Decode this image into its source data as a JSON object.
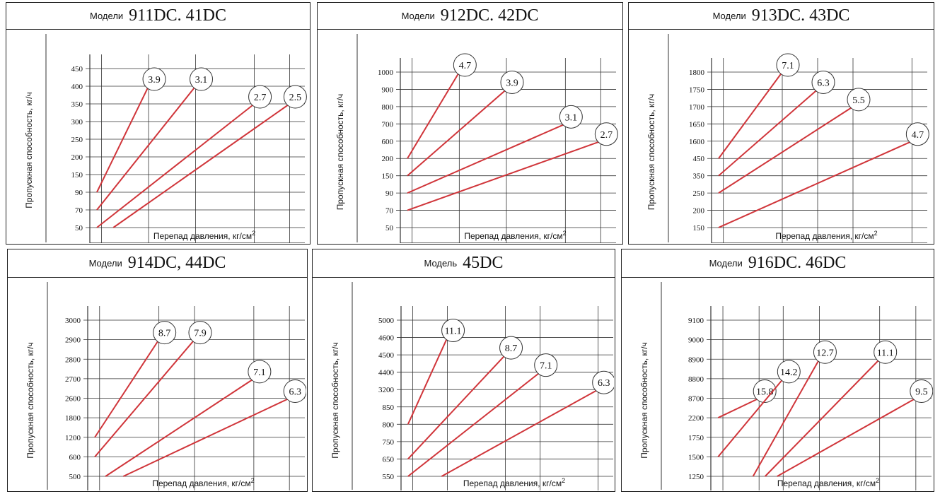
{
  "colors": {
    "line": "#d0353a",
    "grid": "#333333",
    "frame": "#222222"
  },
  "chart_data": [
    {
      "type": "line",
      "title_prefix": "Модели",
      "title_models": "911DC.  41DC",
      "xlabel": "Перепад давления, кг/см",
      "xlabel_sup": "2",
      "ylabel": "Пропускная способность, кг/ч",
      "x_ticks": [
        "1",
        "5",
        "9",
        "14",
        "17"
      ],
      "y_ticks": [
        "450",
        "400",
        "350",
        "300",
        "250",
        "200",
        "150",
        "90",
        "70",
        "50"
      ],
      "series": [
        {
          "label": "3.9",
          "x": [
            0.6,
            5
          ],
          "y": [
            "90",
            "400"
          ]
        },
        {
          "label": "3.1",
          "x": [
            0.6,
            9
          ],
          "y": [
            "70",
            "400"
          ]
        },
        {
          "label": "2.7",
          "x": [
            0.6,
            14
          ],
          "y": [
            "50",
            "350"
          ]
        },
        {
          "label": "2.5",
          "x": [
            2,
            17
          ],
          "y": [
            "50",
            "350"
          ]
        }
      ]
    },
    {
      "type": "line",
      "title_prefix": "Модели",
      "title_models": "912DC.  42DC",
      "xlabel": "Перепад давления, кг/см",
      "xlabel_sup": "2",
      "ylabel": "Пропускная способность, кг/ч",
      "x_ticks": [
        "1",
        "5",
        "9",
        "14",
        "17"
      ],
      "y_ticks": [
        "1000",
        "900",
        "800",
        "700",
        "600",
        "200",
        "150",
        "90",
        "70",
        "50"
      ],
      "series": [
        {
          "label": "4.7",
          "x": [
            0.6,
            5
          ],
          "y": [
            "200",
            "1000"
          ]
        },
        {
          "label": "3.9",
          "x": [
            0.6,
            9
          ],
          "y": [
            "150",
            "900"
          ]
        },
        {
          "label": "3.1",
          "x": [
            0.6,
            14
          ],
          "y": [
            "90",
            "700"
          ]
        },
        {
          "label": "2.7",
          "x": [
            0.6,
            17
          ],
          "y": [
            "70",
            "600"
          ]
        }
      ]
    },
    {
      "type": "line",
      "title_prefix": "Модели",
      "title_models": "913DC.  43DC",
      "xlabel": "Перепад давления, кг/см",
      "xlabel_sup": "2",
      "ylabel": "Пропускная способность, кг/ч",
      "x_ticks": [
        "1",
        "6",
        "9",
        "12",
        "17"
      ],
      "y_ticks": [
        "1800",
        "1750",
        "1700",
        "1650",
        "1600",
        "450",
        "350",
        "250",
        "200",
        "150"
      ],
      "series": [
        {
          "label": "7.1",
          "x": [
            0.6,
            6
          ],
          "y": [
            "450",
            "1800"
          ]
        },
        {
          "label": "6.3",
          "x": [
            0.6,
            9
          ],
          "y": [
            "350",
            "1750"
          ]
        },
        {
          "label": "5.5",
          "x": [
            0.6,
            12
          ],
          "y": [
            "250",
            "1700"
          ]
        },
        {
          "label": "4.7",
          "x": [
            0.6,
            17
          ],
          "y": [
            "150",
            "1600"
          ]
        }
      ]
    },
    {
      "type": "line",
      "title_prefix": "Модели",
      "title_models": "914DC, 44DC",
      "xlabel": "Перепад давления, кг/см",
      "xlabel_sup": "2",
      "ylabel": "Пропускная способность, кг/ч",
      "x_ticks": [
        "1",
        "6",
        "9",
        "14",
        "17"
      ],
      "y_ticks": [
        "3000",
        "2900",
        "2800",
        "2700",
        "2600",
        "1800",
        "1200",
        "600",
        "500"
      ],
      "series": [
        {
          "label": "8.7",
          "x": [
            0.6,
            6
          ],
          "y": [
            "1200",
            "2900"
          ]
        },
        {
          "label": "7.9",
          "x": [
            0.6,
            9
          ],
          "y": [
            "600",
            "2900"
          ]
        },
        {
          "label": "7.1",
          "x": [
            1.5,
            14
          ],
          "y": [
            "500",
            "2700"
          ]
        },
        {
          "label": "6.3",
          "x": [
            3,
            17
          ],
          "y": [
            "500",
            "2600"
          ]
        }
      ]
    },
    {
      "type": "line",
      "title_prefix": "Модель",
      "title_models": "45DC",
      "xlabel": "Перепад давления, кг/см",
      "xlabel_sup": "2",
      "ylabel": "Пропускная способность, кг/ч",
      "x_ticks": [
        "1",
        "4",
        "9",
        "12",
        "17"
      ],
      "y_ticks": [
        "5000",
        "4600",
        "4500",
        "4400",
        "3200",
        "850",
        "800",
        "750",
        "650",
        "550"
      ],
      "series": [
        {
          "label": "11.1",
          "x": [
            0.6,
            4
          ],
          "y": [
            "800",
            "4600"
          ]
        },
        {
          "label": "8.7",
          "x": [
            0.6,
            9
          ],
          "y": [
            "650",
            "4500"
          ]
        },
        {
          "label": "7.1",
          "x": [
            0.6,
            12
          ],
          "y": [
            "550",
            "4400"
          ]
        },
        {
          "label": "6.3",
          "x": [
            3.5,
            17
          ],
          "y": [
            "550",
            "3200"
          ]
        }
      ]
    },
    {
      "type": "line",
      "title_prefix": "Модели",
      "title_models": "916DC.  46DC",
      "xlabel": "Перепад давления, кг/см",
      "xlabel_sup": "2",
      "ylabel": "Пропускная способность, кг/ч",
      "x_ticks": [
        "1",
        "4",
        "6",
        "9",
        "14",
        "17"
      ],
      "y_ticks": [
        "9100",
        "9000",
        "8900",
        "8800",
        "8700",
        "2200",
        "1750",
        "1500",
        "1250"
      ],
      "series": [
        {
          "label": "15.8",
          "x": [
            0.6,
            4
          ],
          "y": [
            "2200",
            "8700"
          ]
        },
        {
          "label": "14.2",
          "x": [
            0.6,
            6
          ],
          "y": [
            "1500",
            "8800"
          ]
        },
        {
          "label": "12.7",
          "x": [
            3.5,
            9
          ],
          "y": [
            "1250",
            "8900"
          ]
        },
        {
          "label": "11.1",
          "x": [
            4.5,
            14
          ],
          "y": [
            "1250",
            "8900"
          ]
        },
        {
          "label": "9.5",
          "x": [
            5.5,
            17
          ],
          "y": [
            "1250",
            "8700"
          ]
        }
      ]
    }
  ]
}
